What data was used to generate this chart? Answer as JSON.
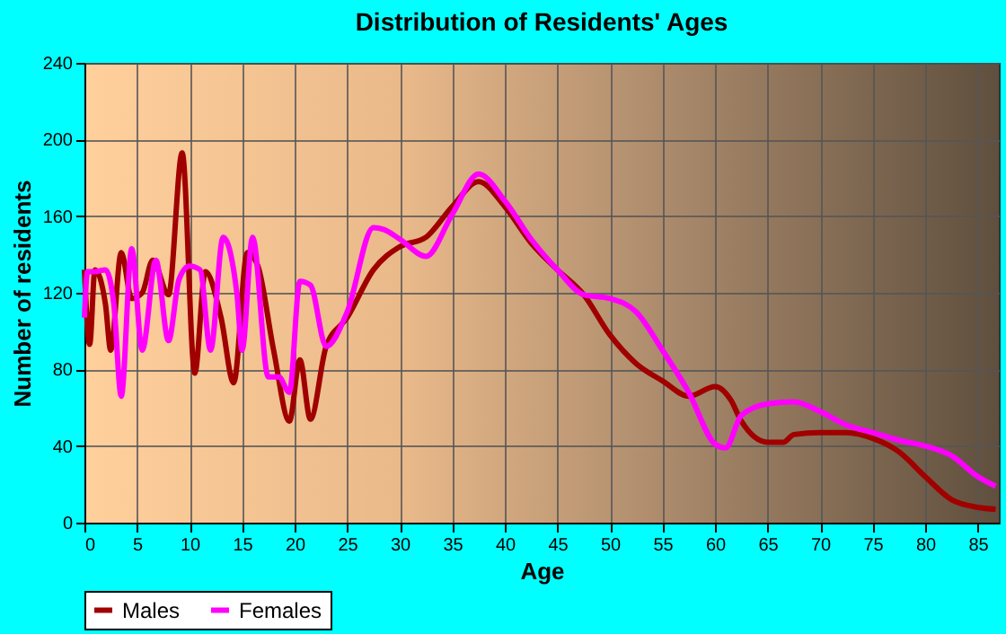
{
  "chart_data": {
    "type": "line",
    "title": "Distribution of Residents' Ages",
    "xlabel": "Age",
    "ylabel": "Number of residents",
    "series": [
      {
        "name": "Males",
        "color": "#a00000",
        "x": [
          0,
          0.5,
          1,
          2,
          2.5,
          3.5,
          4.5,
          5.5,
          6.5,
          8,
          9.3,
          10.5,
          11.5,
          13,
          14.2,
          15.5,
          16.5,
          18,
          19.5,
          20.5,
          21.5,
          23,
          25,
          27.5,
          30,
          32.5,
          35,
          37.5,
          40,
          42.5,
          45,
          47.5,
          50,
          52.5,
          55,
          57.5,
          60,
          61.5,
          62.5,
          65,
          66.5,
          67.5,
          70,
          72.5,
          75,
          77.5,
          80,
          82.5,
          85,
          86.7
        ],
        "values": [
          132,
          93,
          132,
          114,
          90,
          141,
          117,
          120,
          137,
          119,
          193,
          78,
          131,
          107,
          73,
          141,
          134,
          90,
          53,
          85,
          54,
          92,
          107,
          132,
          144,
          149,
          165,
          178,
          165,
          146,
          132,
          119,
          98,
          83,
          74,
          66,
          71,
          64,
          53,
          42,
          42,
          46,
          47,
          47,
          44,
          37,
          24,
          12,
          8,
          7
        ]
      },
      {
        "name": "Females",
        "color": "#ff00ff",
        "x": [
          0,
          0.3,
          1,
          2,
          2.8,
          3.5,
          4.5,
          5.5,
          6.8,
          8,
          9,
          10,
          11,
          12,
          13.2,
          14.5,
          15,
          16,
          17.5,
          18.5,
          19.5,
          20.5,
          21.5,
          23,
          25,
          27.5,
          28.5,
          30,
          32.5,
          35,
          37.5,
          40,
          42.5,
          45,
          47.5,
          50,
          52.5,
          55,
          57.5,
          60,
          61,
          62.5,
          65,
          67.5,
          70,
          72.5,
          75,
          77.5,
          80,
          82.5,
          85,
          86.7
        ],
        "values": [
          107,
          131,
          131,
          132,
          114,
          66,
          143,
          90,
          137,
          95,
          127,
          134,
          132,
          90,
          149,
          120,
          90,
          149,
          76,
          76,
          68,
          126,
          124,
          92,
          110,
          154,
          153,
          148,
          139,
          161,
          182,
          168,
          148,
          132,
          119,
          117,
          110,
          90,
          68,
          41,
          39,
          56,
          62,
          63,
          58,
          51,
          47,
          43,
          40,
          35,
          24,
          19
        ]
      }
    ],
    "xlim": [
      0,
      87
    ],
    "xticks": [
      0,
      5,
      10,
      15,
      20,
      25,
      30,
      35,
      40,
      45,
      50,
      55,
      60,
      65,
      70,
      75,
      80,
      85
    ],
    "ylim": [
      0,
      240
    ],
    "yticks": [
      0,
      40,
      80,
      120,
      160,
      200,
      240
    ],
    "grid": true,
    "legend": "bottom",
    "marker": "none",
    "line_style": "solid"
  }
}
